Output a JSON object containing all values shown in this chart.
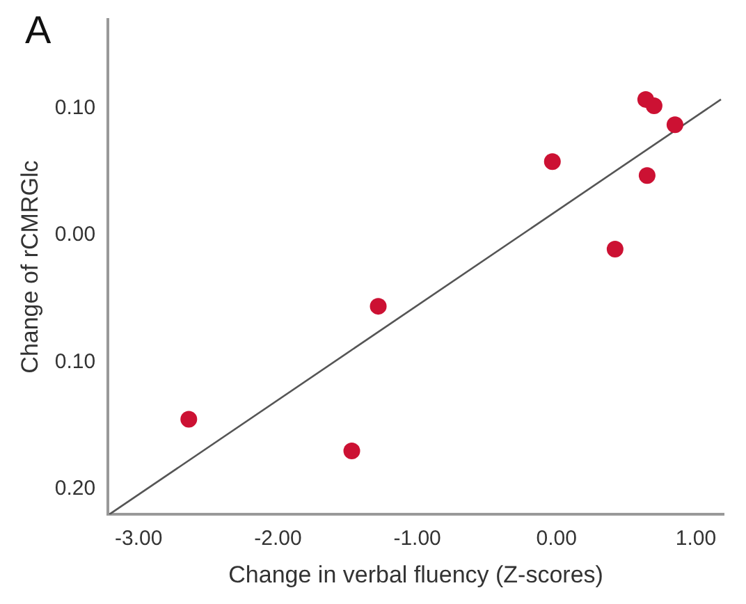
{
  "chart_data": {
    "type": "scatter",
    "title": "A",
    "xlabel": "Change in verbal fluency (Z-scores)",
    "ylabel": "Change of rCMRGlc",
    "xlim": [
      -3.22,
      1.2
    ],
    "ylim": [
      -0.22,
      0.17
    ],
    "xticks": [
      {
        "value": -3,
        "label": "-3.00"
      },
      {
        "value": -2,
        "label": "-2.00"
      },
      {
        "value": -1,
        "label": "-1.00"
      },
      {
        "value": 0,
        "label": "0.00"
      },
      {
        "value": 1,
        "label": "1.00"
      }
    ],
    "yticks": [
      {
        "value": 0.1,
        "label": "0.10"
      },
      {
        "value": 0,
        "label": "0.00"
      },
      {
        "value": -0.1,
        "label": "0.10"
      },
      {
        "value": -0.2,
        "label": "0.20"
      }
    ],
    "grid": false,
    "legend": false,
    "marker": "circle",
    "series": [
      {
        "color": "#cc1133",
        "x": [
          0.64,
          0.7,
          0.85,
          -0.03,
          0.65,
          0.42,
          -1.28,
          -2.64,
          -1.47
        ],
        "values": [
          0.107,
          0.102,
          0.087,
          0.058,
          0.047,
          -0.011,
          -0.056,
          -0.145,
          -0.17
        ]
      },
      {
        "type": "line",
        "color": "#555555",
        "x": [
          -3.21,
          1.18
        ],
        "values": [
          -0.22,
          0.107
        ],
        "marker": "none",
        "line_style": "solid"
      }
    ]
  }
}
